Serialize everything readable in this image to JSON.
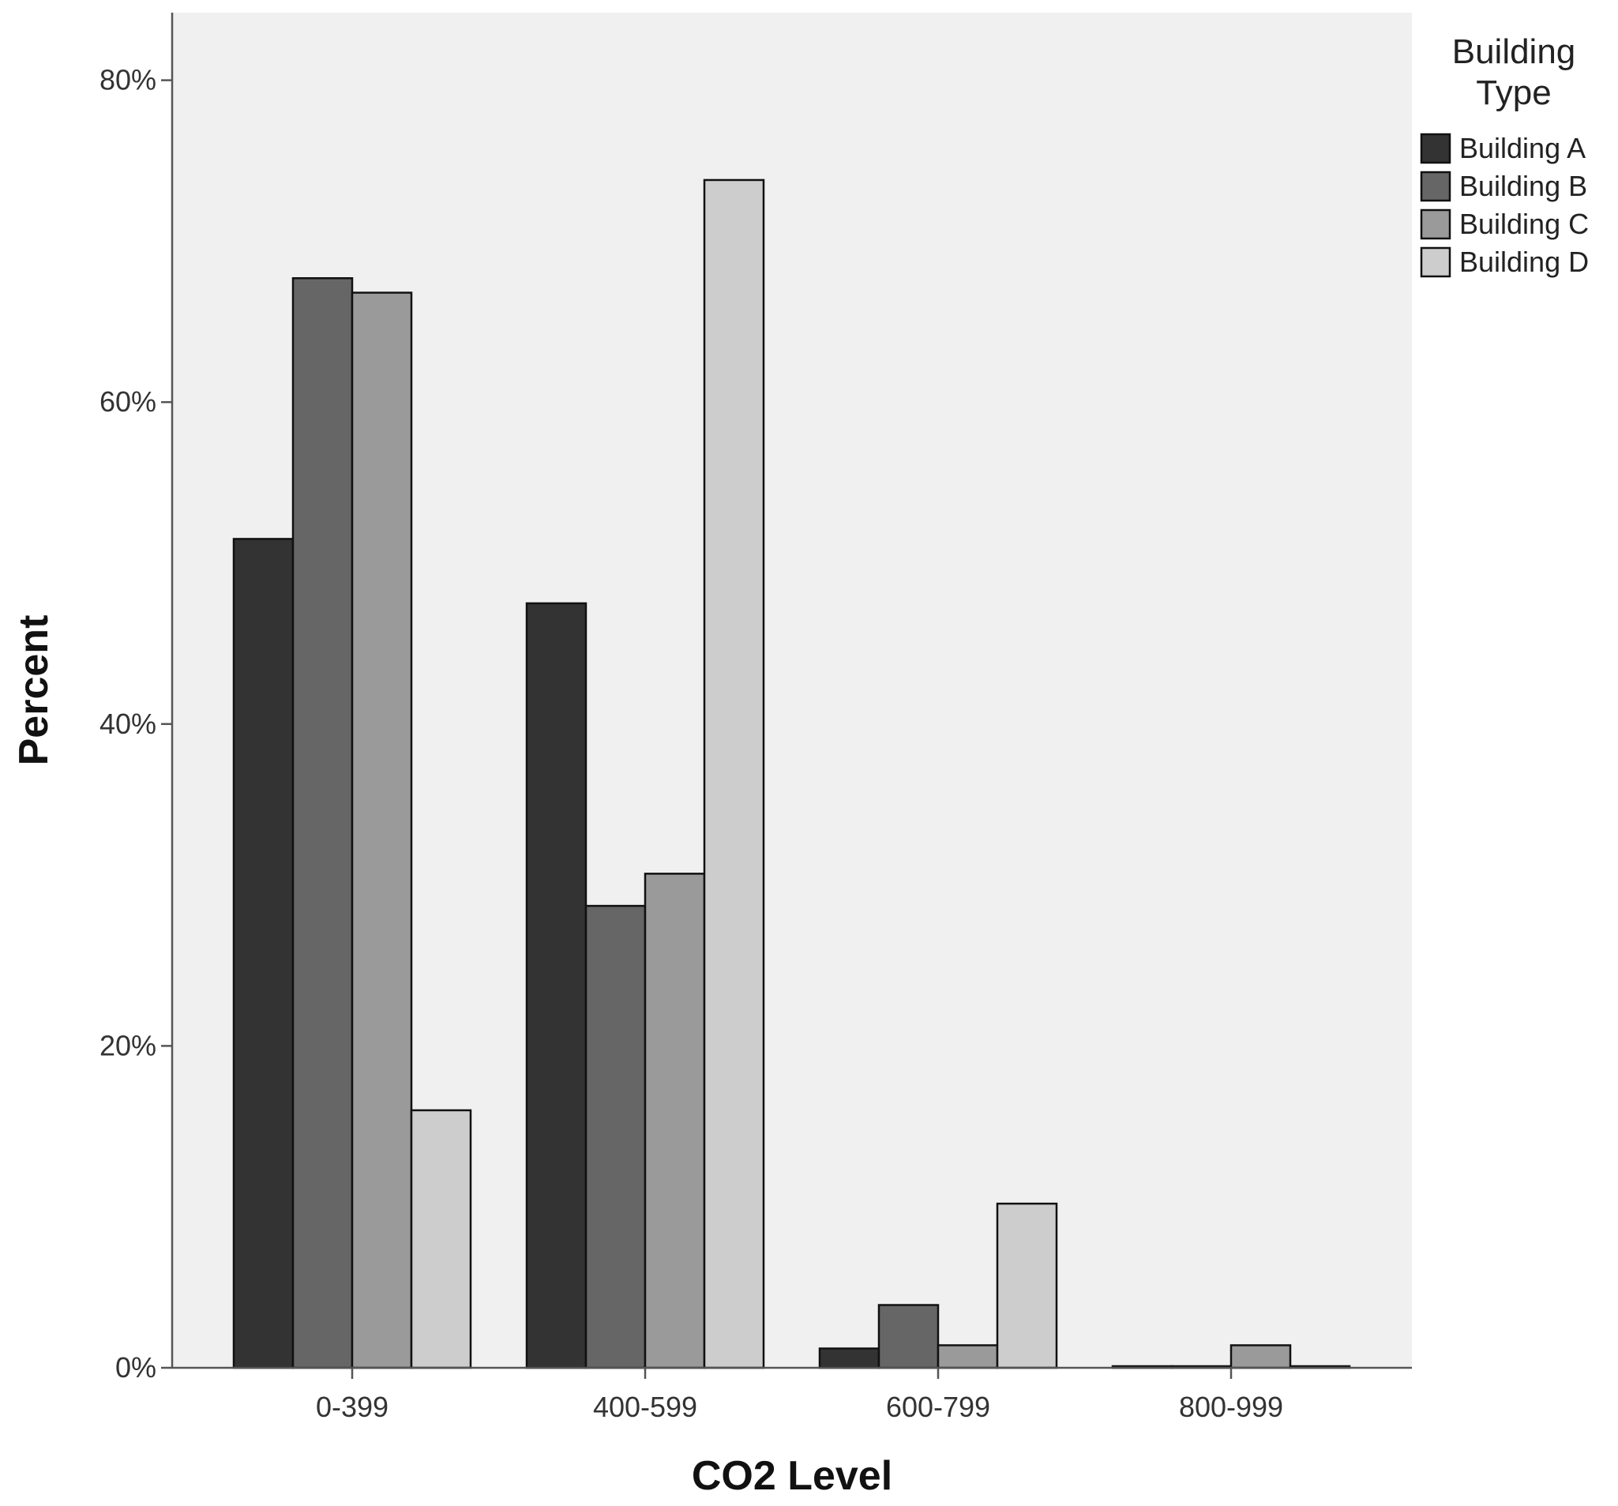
{
  "chart_data": {
    "type": "bar",
    "categories": [
      "0-399",
      "400-599",
      "600-799",
      "800-999"
    ],
    "series": [
      {
        "name": "Building A",
        "values": [
          51.5,
          47.5,
          1.2,
          0.1
        ],
        "color": "#333333"
      },
      {
        "name": "Building B",
        "values": [
          67.7,
          28.7,
          3.9,
          0.1
        ],
        "color": "#666666"
      },
      {
        "name": "Building C",
        "values": [
          66.8,
          30.7,
          1.4,
          1.4
        ],
        "color": "#9a9a9a"
      },
      {
        "name": "Building D",
        "values": [
          16.0,
          73.8,
          10.2,
          0.1
        ],
        "color": "#cdcdcd"
      }
    ],
    "xlabel": "CO2 Level",
    "ylabel": "Percent",
    "yticks": [
      0,
      20,
      40,
      60,
      80
    ],
    "ytick_labels": [
      "0%",
      "20%",
      "40%",
      "60%",
      "80%"
    ],
    "ylim": [
      0,
      84.2
    ],
    "grid": false,
    "legend": {
      "title_line1": "Building",
      "title_line2": "Type",
      "placement": "right-top"
    },
    "plot_background": "#f0f0f0"
  }
}
